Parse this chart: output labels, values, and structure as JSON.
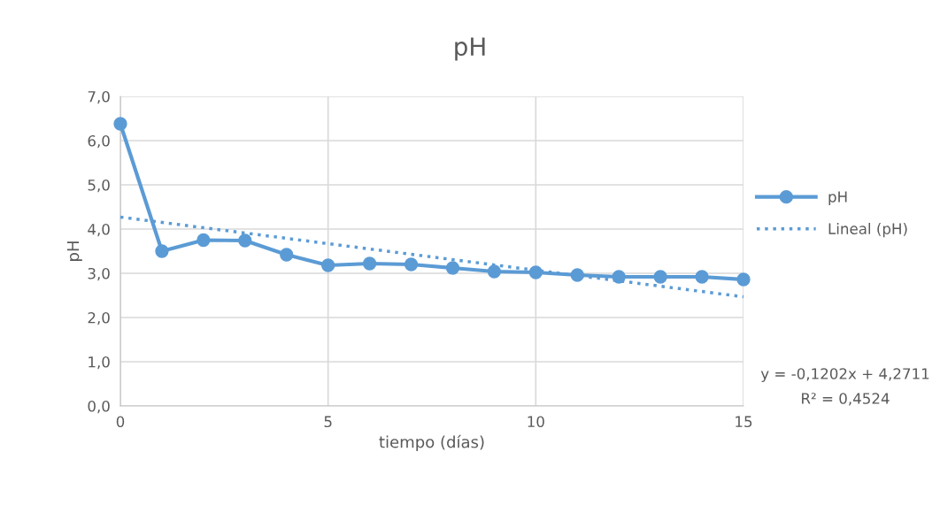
{
  "chart_data": {
    "type": "line",
    "title": "pH",
    "xlabel": "tiempo (días)",
    "ylabel": "pH",
    "x": [
      0,
      1,
      2,
      3,
      4,
      5,
      6,
      7,
      8,
      9,
      10,
      11,
      12,
      13,
      14,
      15
    ],
    "series": [
      {
        "name": "pH",
        "color": "#5b9bd5",
        "marker": "circle",
        "line_style": "solid",
        "values": [
          6.38,
          3.5,
          3.75,
          3.74,
          3.42,
          3.18,
          3.22,
          3.2,
          3.12,
          3.04,
          3.02,
          2.96,
          2.92,
          2.92,
          2.92,
          2.86
        ]
      },
      {
        "name": "Lineal (pH)",
        "color": "#5b9bd5",
        "marker": "none",
        "line_style": "dotted",
        "x": [
          0,
          15
        ],
        "values": [
          4.2711,
          2.4681
        ]
      }
    ],
    "xlim": [
      0,
      15
    ],
    "xticks": [
      0,
      5,
      10,
      15
    ],
    "ylim": [
      0,
      7
    ],
    "yticks": [
      {
        "value": 0,
        "label": "0,0"
      },
      {
        "value": 1,
        "label": "1,0"
      },
      {
        "value": 2,
        "label": "2,0"
      },
      {
        "value": 3,
        "label": "3,0"
      },
      {
        "value": 4,
        "label": "4,0"
      },
      {
        "value": 5,
        "label": "5,0"
      },
      {
        "value": 6,
        "label": "6,0"
      },
      {
        "value": 7,
        "label": "7,0"
      }
    ],
    "grid": true,
    "legend": "right",
    "annotations": [
      "y = -0,1202x + 4,2711",
      "R² = 0,4524"
    ]
  }
}
